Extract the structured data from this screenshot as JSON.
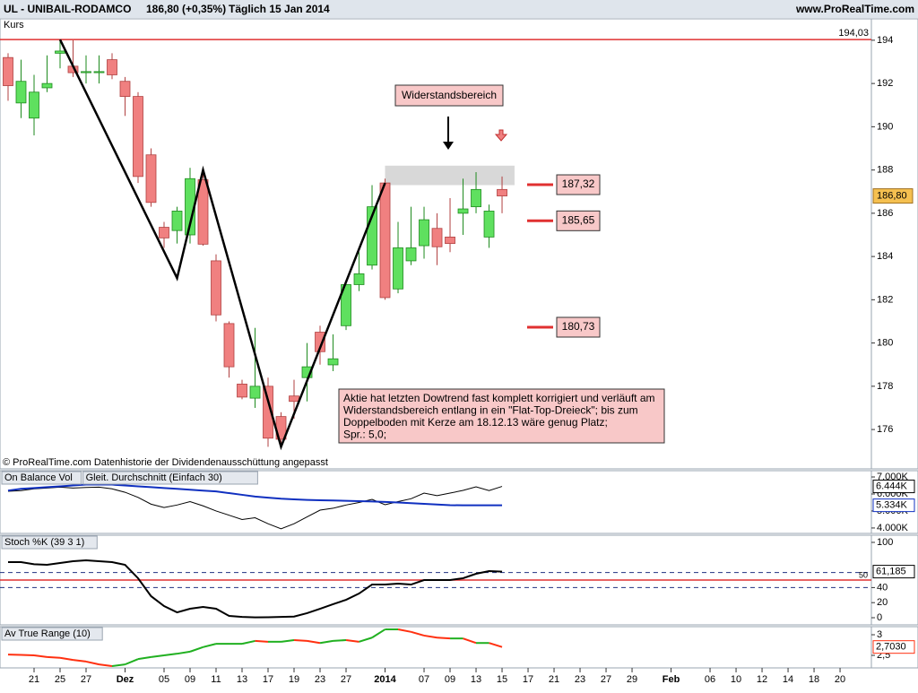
{
  "header": {
    "symbol": "UL - UNIBAIL-RODAMCO",
    "quote": "186,80 (+0,35%)",
    "period": "Täglich  15 Jan 2014",
    "site": "www.ProRealTime.com"
  },
  "chart_data": [
    {
      "type": "candlestick",
      "title": "Kurs",
      "up_color": "#5fe05f",
      "down_color": "#f08080",
      "open": [
        193.2,
        191.1,
        190.4,
        191.8,
        193.4,
        192.8,
        192.5,
        192.5,
        193.1,
        192.1,
        191.4,
        188.7,
        185.35,
        185.2,
        185.0,
        187.55,
        183.8,
        180.9,
        178.1,
        177.45,
        178.0,
        176.6,
        177.55,
        178.4,
        180.5,
        178.99,
        180.8,
        182.7,
        183.6,
        187.4,
        182.5,
        183.8,
        184.5,
        185.3,
        184.9,
        186.0,
        186.3,
        184.9,
        187.1
      ],
      "high": [
        193.4,
        193.1,
        192.4,
        193.3,
        194.03,
        194.0,
        193.3,
        193.3,
        193.4,
        192.3,
        191.6,
        189.0,
        185.6,
        186.3,
        188.1,
        188.0,
        184.1,
        181.0,
        178.3,
        180.7,
        178.4,
        176.8,
        178.3,
        180.0,
        180.8,
        180.4,
        182.8,
        184.2,
        187.3,
        187.6,
        185.6,
        186.3,
        186.3,
        186.0,
        186.7,
        187.6,
        187.9,
        186.4,
        187.7
      ],
      "low": [
        191.2,
        190.4,
        189.6,
        191.6,
        192.7,
        192.3,
        192.0,
        192.0,
        192.2,
        190.5,
        187.4,
        186.3,
        184.4,
        184.6,
        184.6,
        184.5,
        181.0,
        178.4,
        177.4,
        177.0,
        175.2,
        175.2,
        176.5,
        177.3,
        179.0,
        178.7,
        180.6,
        182.4,
        183.4,
        182.0,
        182.3,
        183.6,
        183.9,
        183.6,
        184.2,
        185.0,
        186.0,
        184.4,
        186.0
      ],
      "close": [
        191.9,
        192.1,
        191.6,
        192.0,
        193.5,
        192.5,
        192.55,
        192.55,
        192.4,
        191.4,
        187.7,
        186.5,
        184.86,
        186.1,
        187.6,
        184.57,
        181.3,
        178.9,
        177.5,
        178.0,
        175.6,
        175.55,
        177.3,
        178.9,
        179.6,
        179.27,
        182.7,
        183.2,
        186.3,
        182.1,
        184.4,
        184.4,
        185.7,
        184.45,
        184.6,
        186.2,
        187.1,
        186.1,
        186.8
      ],
      "ylim": [
        174.18,
        194.99
      ],
      "yticks": [
        176,
        178,
        180,
        182,
        184,
        186,
        188,
        190,
        192,
        194
      ],
      "high_line": {
        "value": 194.03,
        "label": "194,03",
        "color": "#e03030"
      },
      "last_price": {
        "value": 186.8,
        "label": "186,80",
        "color": "#f5c050"
      },
      "levels": [
        {
          "value": 187.32,
          "label": "187,32"
        },
        {
          "value": 185.65,
          "label": "185,65"
        },
        {
          "value": 180.73,
          "label": "180,73"
        }
      ],
      "level_color": "#e03030",
      "resistance_zone": {
        "x": [
          29,
          38.96
        ],
        "y": [
          187.3,
          188.2
        ],
        "label": "Widerstandsbereich"
      },
      "trendline": {
        "x": [
          4,
          13,
          15,
          21,
          29
        ],
        "y": [
          194.03,
          183.0,
          188.0,
          175.2,
          187.4
        ]
      },
      "annotation": [
        "Aktie hat letzten Dowtrend fast komplett korrigiert und verläuft am",
        "Widerstandsbereich entlang in ein \"Flat-Top-Dreieck\"; bis zum",
        "Doppelboden mit Kerze am 18.12.13 wäre genug Platz;",
        "Spr.: 5,0;"
      ],
      "footnote": "© ProRealTime.com  Datenhistorie der Dividendenausschüttung angepasst"
    },
    {
      "type": "line",
      "ylim": [
        3.68,
        7.37
      ],
      "yticks": [
        {
          "value": 7,
          "label": "7.000K"
        },
        {
          "value": 6,
          "label": "6.000K"
        },
        {
          "value": 5,
          "label": "5.000K"
        },
        {
          "value": 4,
          "label": "4.000K"
        }
      ],
      "series": [
        {
          "name": "On Balance Vol",
          "color": "#000000",
          "last_label": "6.444K",
          "values": [
            6.16,
            6.2,
            6.3,
            6.35,
            6.4,
            6.35,
            6.38,
            6.4,
            6.3,
            6.1,
            5.8,
            5.4,
            5.2,
            5.35,
            5.55,
            5.3,
            5.0,
            4.75,
            4.5,
            4.6,
            4.25,
            3.95,
            4.25,
            4.65,
            5.05,
            5.16,
            5.35,
            5.5,
            5.68,
            5.37,
            5.55,
            5.72,
            6.05,
            5.9,
            6.05,
            6.21,
            6.42,
            6.2,
            6.444
          ]
        },
        {
          "name": "Gleit. Durchschnitt (Einfach 30)",
          "color": "#1030c0",
          "last_label": "5.334K",
          "values": [
            6.2,
            6.3,
            6.35,
            6.4,
            6.45,
            6.5,
            6.55,
            6.55,
            6.55,
            6.5,
            6.45,
            6.4,
            6.35,
            6.3,
            6.25,
            6.2,
            6.15,
            6.05,
            5.95,
            5.85,
            5.78,
            5.72,
            5.68,
            5.65,
            5.63,
            5.62,
            5.6,
            5.58,
            5.56,
            5.53,
            5.5,
            5.46,
            5.42,
            5.38,
            5.34,
            5.334,
            5.334,
            5.334,
            5.334
          ]
        }
      ]
    },
    {
      "type": "line",
      "ylim": [
        -9.5,
        109.5
      ],
      "yticks": [
        100,
        40,
        20,
        0
      ],
      "level": {
        "value": 50,
        "label": "50",
        "color": "#e03030"
      },
      "dashed_levels": [
        60,
        40
      ],
      "series": [
        {
          "name": "Stoch %K (39 3 1)",
          "color": "#000000",
          "last_label": "61,185",
          "values": [
            73.8,
            73.8,
            71,
            70.2,
            72.6,
            75,
            76.2,
            75,
            73.8,
            70.2,
            52.4,
            28.6,
            15.5,
            7.1,
            11.9,
            14.3,
            11.9,
            2.4,
            1.0,
            0.5,
            0.6,
            1.0,
            1.5,
            6.0,
            11.9,
            17.9,
            23.8,
            32.1,
            44.0,
            44.0,
            45.2,
            44.0,
            50.0,
            50.0,
            50.0,
            52.4,
            58.3,
            61.9,
            61.185
          ]
        }
      ]
    },
    {
      "type": "line",
      "ylim": [
        2.196,
        3.196
      ],
      "yticks": [
        3,
        {
          "value": 2.5,
          "label": "2,5"
        }
      ],
      "up_color": "#20b020",
      "down_color": "#ff3010",
      "series": [
        {
          "name": "Av True Range (10)",
          "color": "#ff3010",
          "last_label": "2,7030",
          "values": [
            2.52,
            2.51,
            2.5,
            2.46,
            2.44,
            2.39,
            2.35,
            2.28,
            2.24,
            2.28,
            2.41,
            2.46,
            2.5,
            2.54,
            2.59,
            2.7,
            2.78,
            2.78,
            2.78,
            2.85,
            2.83,
            2.83,
            2.87,
            2.85,
            2.8,
            2.85,
            2.87,
            2.83,
            2.93,
            3.13,
            3.13,
            3.07,
            2.98,
            2.93,
            2.91,
            2.91,
            2.8,
            2.8,
            2.703
          ]
        }
      ],
      "xlim": [
        -0.62,
        66.41
      ],
      "xticks": [
        {
          "value": 2,
          "label": "21"
        },
        {
          "value": 4,
          "label": "25"
        },
        {
          "value": 6,
          "label": "27"
        },
        {
          "value": 9,
          "label": "Dez"
        },
        {
          "value": 12,
          "label": "05"
        },
        {
          "value": 14,
          "label": "09"
        },
        {
          "value": 16,
          "label": "11"
        },
        {
          "value": 18,
          "label": "13"
        },
        {
          "value": 20,
          "label": "17"
        },
        {
          "value": 22,
          "label": "19"
        },
        {
          "value": 24,
          "label": "23"
        },
        {
          "value": 26,
          "label": "27"
        },
        {
          "value": 29,
          "label": "2014"
        },
        {
          "value": 32,
          "label": "07"
        },
        {
          "value": 34,
          "label": "09"
        },
        {
          "value": 36,
          "label": "13"
        },
        {
          "value": 38,
          "label": "15"
        },
        {
          "value": 40,
          "label": "17"
        },
        {
          "value": 42,
          "label": "21"
        },
        {
          "value": 44,
          "label": "23"
        },
        {
          "value": 46,
          "label": "27"
        },
        {
          "value": 48,
          "label": "29"
        },
        {
          "value": 51,
          "label": "Feb"
        },
        {
          "value": 54,
          "label": "06"
        },
        {
          "value": 56,
          "label": "10"
        },
        {
          "value": 58,
          "label": "12"
        },
        {
          "value": 60,
          "label": "14"
        },
        {
          "value": 62,
          "label": "18"
        },
        {
          "value": 64,
          "label": "20"
        }
      ]
    }
  ]
}
